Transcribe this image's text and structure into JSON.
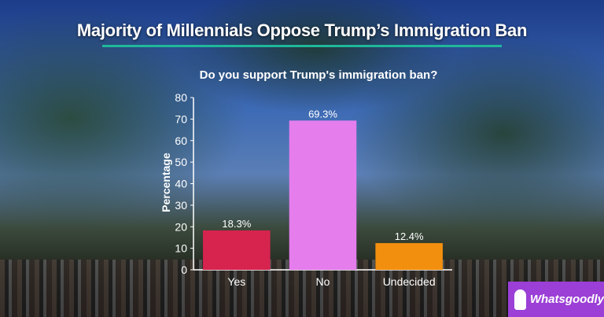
{
  "header": {
    "title": "Majority of Millennials Oppose Trump’s Immigration Ban"
  },
  "brand": {
    "name": "Whatsgoodly",
    "icon": "whatsgoodly-logo-icon"
  },
  "colors": {
    "accent_rule": "#1fb89a",
    "brand_bg": "#9b3fd6"
  },
  "chart_data": {
    "type": "bar",
    "title": "Do you support Trump's immigration ban?",
    "ylabel": "Percentage",
    "xlabel": "",
    "categories": [
      "Yes",
      "No",
      "Undecided"
    ],
    "values": [
      18.3,
      69.3,
      12.4
    ],
    "data_labels": [
      "18.3%",
      "69.3%",
      "12.4%"
    ],
    "colors": [
      "#d6244f",
      "#e57ded",
      "#f28f0f"
    ],
    "ylim": [
      0,
      80
    ],
    "yticks": [
      0,
      10,
      20,
      30,
      40,
      50,
      60,
      70,
      80
    ],
    "grid": false,
    "legend": "none"
  }
}
